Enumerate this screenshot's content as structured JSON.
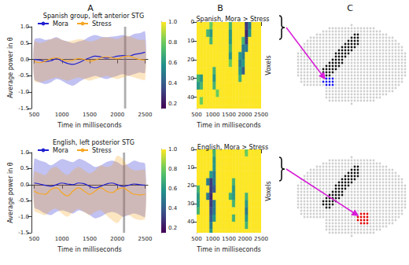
{
  "panel_labels": [
    "A",
    "B",
    "C"
  ],
  "chart_data": [
    {
      "type": "line",
      "title": "Spanish group, left anterior STG",
      "xlabel": "Time in milliseconds",
      "ylabel": "Average power in θ",
      "x": [
        500,
        600,
        700,
        800,
        900,
        1000,
        1100,
        1200,
        1300,
        1400,
        1500,
        1600,
        1700,
        1800,
        1900,
        2000,
        2100,
        2200,
        2300,
        2400,
        2500
      ],
      "series": [
        {
          "name": "Mora",
          "color": "#1f1fd0",
          "line_style": "solid",
          "values": [
            0.0,
            -0.02,
            -0.06,
            -0.04,
            0.02,
            -0.05,
            -0.12,
            -0.15,
            -0.1,
            -0.02,
            0.05,
            0.1,
            0.08,
            0.04,
            0.06,
            0.1,
            0.12,
            0.1,
            0.15,
            0.18,
            0.22
          ],
          "lower": [
            -0.6,
            -0.7,
            -0.75,
            -0.7,
            -0.6,
            -0.65,
            -0.75,
            -0.8,
            -0.7,
            -0.6,
            -0.55,
            -0.5,
            -0.55,
            -0.6,
            -0.55,
            -0.5,
            -0.45,
            -0.5,
            -0.45,
            -0.4,
            -0.4
          ],
          "upper": [
            0.6,
            0.65,
            0.6,
            0.62,
            0.68,
            0.6,
            0.55,
            0.5,
            0.55,
            0.6,
            0.7,
            0.75,
            0.7,
            0.68,
            0.7,
            0.72,
            0.75,
            0.7,
            0.78,
            0.8,
            0.85
          ]
        },
        {
          "name": "Stress",
          "color": "#f5a623",
          "line_style": "solid",
          "values": [
            -0.05,
            -0.1,
            -0.05,
            0.02,
            0.05,
            0.0,
            -0.05,
            -0.02,
            0.03,
            0.0,
            -0.05,
            -0.02,
            0.05,
            0.08,
            0.05,
            0.02,
            0.08,
            0.1,
            0.05,
            0.0,
            -0.02
          ],
          "lower": [
            -0.65,
            -0.7,
            -0.65,
            -0.6,
            -0.55,
            -0.6,
            -0.65,
            -0.6,
            -0.55,
            -0.6,
            -0.65,
            -0.6,
            -0.55,
            -0.5,
            -0.55,
            -0.6,
            -0.55,
            -0.5,
            -0.55,
            -0.6,
            -0.62
          ],
          "upper": [
            0.55,
            0.5,
            0.55,
            0.62,
            0.65,
            0.6,
            0.55,
            0.58,
            0.62,
            0.6,
            0.55,
            0.58,
            0.65,
            0.68,
            0.65,
            0.62,
            0.7,
            0.72,
            0.65,
            0.6,
            0.58
          ]
        }
      ],
      "shaded_interval": [
        2120,
        2160
      ],
      "xlim": [
        450,
        2550
      ],
      "xticks": [
        500,
        1000,
        1500,
        2000,
        2500
      ],
      "ylim": [
        -1.5,
        1.0
      ],
      "yticks": [
        {
          "value": -1.5,
          "label": "-1.5"
        },
        {
          "value": -1.0,
          "label": "-1.0"
        },
        {
          "value": -0.5,
          "label": "-0.5"
        },
        {
          "value": 0,
          "label": "0.0"
        },
        {
          "value": 0.5,
          "label": "0.5"
        },
        {
          "value": 1.0,
          "label": "1.0"
        }
      ],
      "legend": "top",
      "grid": false
    },
    {
      "type": "line",
      "title": "English, left posterior STG",
      "xlabel": "Time in milliseconds",
      "ylabel": "Average power in θ",
      "x": [
        500,
        600,
        700,
        800,
        900,
        1000,
        1100,
        1200,
        1300,
        1400,
        1500,
        1600,
        1700,
        1800,
        1900,
        2000,
        2100,
        2200,
        2300,
        2400,
        2500
      ],
      "series": [
        {
          "name": "Mora",
          "color": "#1f1fd0",
          "line_style": "solid",
          "values": [
            0.05,
            0.02,
            -0.02,
            -0.05,
            0.0,
            0.05,
            0.02,
            0.0,
            0.05,
            0.03,
            -0.05,
            -0.1,
            -0.05,
            0.02,
            0.05,
            0.0,
            -0.05,
            -0.02,
            0.02,
            0.0,
            -0.02
          ],
          "lower": [
            -0.7,
            -0.8,
            -0.9,
            -0.95,
            -0.85,
            -0.8,
            -0.85,
            -0.9,
            -0.8,
            -0.85,
            -0.95,
            -1.05,
            -1.0,
            -0.9,
            -0.85,
            -0.9,
            -1.0,
            -0.95,
            -0.9,
            -0.95,
            -1.0
          ],
          "upper": [
            0.8,
            0.75,
            0.7,
            0.6,
            0.7,
            0.8,
            0.75,
            0.7,
            0.8,
            0.75,
            0.65,
            0.55,
            0.6,
            0.7,
            0.75,
            0.7,
            0.6,
            0.65,
            0.75,
            0.7,
            0.65
          ]
        },
        {
          "name": "Stress",
          "color": "#f5a623",
          "line_style": "solid",
          "values": [
            -0.2,
            -0.28,
            -0.3,
            -0.15,
            -0.1,
            -0.25,
            -0.35,
            -0.2,
            -0.1,
            -0.2,
            -0.3,
            -0.2,
            -0.1,
            -0.2,
            -0.25,
            -0.15,
            -0.1,
            -0.2,
            -0.3,
            -0.32,
            -0.3
          ],
          "lower": [
            -0.8,
            -0.9,
            -0.95,
            -0.8,
            -0.75,
            -0.9,
            -1.0,
            -0.85,
            -0.75,
            -0.85,
            -0.95,
            -0.85,
            -0.8,
            -0.95,
            -1.1,
            -1.2,
            -1.0,
            -0.95,
            -1.05,
            -1.1,
            -1.05
          ],
          "upper": [
            0.4,
            0.35,
            0.3,
            0.5,
            0.55,
            0.4,
            0.3,
            0.45,
            0.55,
            0.45,
            0.35,
            0.45,
            0.6,
            0.55,
            0.6,
            0.9,
            0.8,
            0.55,
            0.45,
            0.45,
            0.45
          ]
        }
      ],
      "shaded_interval": [
        2100,
        2140
      ],
      "xlim": [
        450,
        2550
      ],
      "xticks": [
        500,
        1000,
        1500,
        2000,
        2500
      ],
      "ylim": [
        -1.5,
        1.0
      ],
      "yticks": [
        {
          "value": -1.5,
          "label": "-1.5"
        },
        {
          "value": -1.0,
          "label": "-1.0"
        },
        {
          "value": -0.5,
          "label": "-0.5"
        },
        {
          "value": 0,
          "label": "0.0"
        },
        {
          "value": 0.5,
          "label": "0.5"
        },
        {
          "value": 1.0,
          "label": "1.0"
        }
      ],
      "legend": "top",
      "grid": false
    },
    {
      "type": "heatmap",
      "title": "Spanish, Mora > Stress",
      "xlabel": "Time in milliseconds",
      "ylabel": "Voxels",
      "x_edges": [
        500,
        600,
        700,
        800,
        900,
        1000,
        1100,
        1200,
        1300,
        1400,
        1500,
        1600,
        1700,
        1800,
        1900,
        2000,
        2100,
        2200,
        2300,
        2400,
        2500
      ],
      "y_edges": [
        0,
        4,
        8,
        12,
        16,
        20,
        24,
        28,
        32,
        36,
        40,
        44,
        46
      ],
      "cells": [
        [
          1,
          1,
          1,
          1,
          0.8,
          1,
          1,
          1,
          1,
          1,
          0.7,
          1,
          1,
          1,
          1,
          0.3,
          0.5,
          1,
          1,
          1
        ],
        [
          1,
          1,
          1,
          0.7,
          0.6,
          1,
          1,
          1,
          1,
          1,
          0.6,
          1,
          1,
          1,
          1,
          0.25,
          0.6,
          1,
          1,
          1
        ],
        [
          1,
          1,
          1,
          1,
          0.7,
          1,
          1,
          1,
          1,
          1,
          0.6,
          1,
          1,
          1,
          0.7,
          0.3,
          1,
          1,
          1,
          1
        ],
        [
          1,
          1,
          1,
          1,
          1,
          1,
          1,
          1,
          1,
          1,
          0.7,
          1,
          1,
          1,
          0.5,
          0.5,
          1,
          1,
          1,
          1
        ],
        [
          1,
          1,
          1,
          1,
          1,
          1,
          1,
          1,
          1,
          1,
          0.6,
          1,
          1,
          0.6,
          0.5,
          1,
          1,
          1,
          1,
          1
        ],
        [
          1,
          1,
          1,
          1,
          1,
          1,
          1,
          1,
          1,
          1,
          0.8,
          1,
          1,
          0.5,
          0.6,
          1,
          1,
          1,
          1,
          1
        ],
        [
          1,
          1,
          1,
          1,
          1,
          0.7,
          1,
          1,
          1,
          1,
          1,
          1,
          1,
          0.6,
          0.4,
          1,
          1,
          1,
          1,
          1
        ],
        [
          0.7,
          0.6,
          1,
          1,
          1,
          0.6,
          1,
          1,
          1,
          1,
          1,
          1,
          1,
          0.7,
          1,
          1,
          1,
          1,
          1,
          1
        ],
        [
          0.6,
          0.7,
          1,
          1,
          1,
          0.7,
          1,
          1,
          1,
          1,
          1,
          1,
          1,
          1,
          1,
          1,
          1,
          1,
          1,
          1
        ],
        [
          1,
          1,
          1,
          1,
          1,
          1,
          0.8,
          1,
          1,
          1,
          1,
          1,
          1,
          1,
          1,
          1,
          1,
          1,
          1,
          1
        ],
        [
          1,
          0.8,
          1,
          1,
          1,
          1,
          1,
          1,
          1,
          1,
          1,
          1,
          1,
          1,
          1,
          1,
          1,
          1,
          1,
          1
        ],
        [
          1,
          1,
          1,
          1,
          1,
          1,
          1,
          1,
          1,
          1,
          1,
          1,
          1,
          1,
          1,
          1,
          1,
          1,
          1,
          1
        ]
      ],
      "xlim": [
        500,
        2500
      ],
      "xticks": [
        500,
        1000,
        1500,
        2000,
        2500
      ],
      "ylim": [
        0,
        46
      ],
      "yticks": [
        0,
        10,
        20,
        30,
        40
      ],
      "colorbar_lim": [
        0.15,
        1.0
      ],
      "colorbar_ticks": [
        {
          "value": 0.2,
          "label": "0.2"
        },
        {
          "value": 0.4,
          "label": "0.4"
        },
        {
          "value": 0.6,
          "label": "0.6"
        },
        {
          "value": 0.8,
          "label": "0.8"
        },
        {
          "value": 1.0,
          "label": "1.0"
        }
      ]
    },
    {
      "type": "heatmap",
      "title": "English, Mora > Stress",
      "xlabel": "Time in milliseconds",
      "ylabel": "Voxels",
      "x_edges": [
        500,
        600,
        700,
        800,
        900,
        1000,
        1100,
        1200,
        1300,
        1400,
        1500,
        1600,
        1700,
        1800,
        1900,
        2000,
        2100,
        2200,
        2300,
        2400,
        2500
      ],
      "y_edges": [
        0,
        4,
        8,
        12,
        16,
        20,
        24,
        28,
        32,
        36,
        40,
        44,
        46
      ],
      "cells": [
        [
          1,
          1,
          1,
          1,
          1,
          0.7,
          1,
          1,
          1,
          1,
          1,
          1,
          1,
          1,
          1,
          0.8,
          1,
          1,
          1,
          1
        ],
        [
          1,
          1,
          1,
          1,
          1,
          0.6,
          1,
          1,
          1,
          1,
          1,
          1,
          1,
          1,
          1,
          1,
          1,
          1,
          1,
          1
        ],
        [
          1,
          1,
          1,
          1,
          1,
          0.6,
          1,
          1,
          1,
          1,
          1,
          1,
          1,
          1,
          1,
          1,
          1,
          1,
          1,
          1
        ],
        [
          1,
          1,
          1,
          1,
          0.6,
          0.5,
          1,
          1,
          1,
          1,
          1,
          1,
          1,
          1,
          1,
          1,
          1,
          1,
          1,
          1
        ],
        [
          1,
          1,
          1,
          0.5,
          0.3,
          0.5,
          1,
          1,
          1,
          1,
          1,
          0.7,
          1,
          1,
          1,
          1,
          1,
          1,
          1,
          1
        ],
        [
          0.7,
          1,
          1,
          1,
          0.3,
          0.4,
          1,
          1,
          1,
          1,
          1,
          0.6,
          1,
          1,
          1,
          1,
          1,
          1,
          1,
          1
        ],
        [
          0.6,
          1,
          1,
          0.5,
          0.25,
          1,
          1,
          1,
          1,
          1,
          0.7,
          0.6,
          1,
          1,
          1,
          0.7,
          1,
          1,
          1,
          1
        ],
        [
          0.6,
          1,
          1,
          1,
          0.3,
          0.5,
          1,
          1,
          1,
          1,
          1,
          0.7,
          1,
          1,
          1,
          0.6,
          1,
          1,
          1,
          1
        ],
        [
          0.7,
          1,
          1,
          1,
          0.35,
          0.5,
          1,
          1,
          1,
          1,
          1,
          1,
          1,
          1,
          1,
          0.5,
          1,
          1,
          1,
          1
        ],
        [
          1,
          1,
          1,
          1,
          0.4,
          0.6,
          1,
          1,
          1,
          1,
          1,
          0.7,
          1,
          1,
          1,
          0.6,
          1,
          1,
          1,
          1
        ],
        [
          1,
          1,
          1,
          1,
          0.5,
          1,
          1,
          1,
          1,
          1,
          1,
          1,
          1,
          1,
          1,
          0.7,
          1,
          1,
          1,
          1
        ],
        [
          1,
          1,
          1,
          1,
          0.6,
          1,
          1,
          1,
          1,
          1,
          1,
          1,
          1,
          1,
          1,
          1,
          1,
          1,
          1,
          1
        ]
      ],
      "xlim": [
        500,
        2500
      ],
      "xticks": [
        500,
        1000,
        1500,
        2000,
        2500
      ],
      "ylim": [
        0,
        46
      ],
      "yticks": [
        0,
        10,
        20,
        30,
        40
      ],
      "colorbar_lim": [
        0.15,
        1.0
      ],
      "colorbar_ticks": [
        {
          "value": 0.2,
          "label": "0.2"
        },
        {
          "value": 0.4,
          "label": "0.4"
        },
        {
          "value": 0.6,
          "label": "0.6"
        },
        {
          "value": 0.8,
          "label": "0.8"
        },
        {
          "value": 1.0,
          "label": "1.0"
        }
      ]
    }
  ]
}
